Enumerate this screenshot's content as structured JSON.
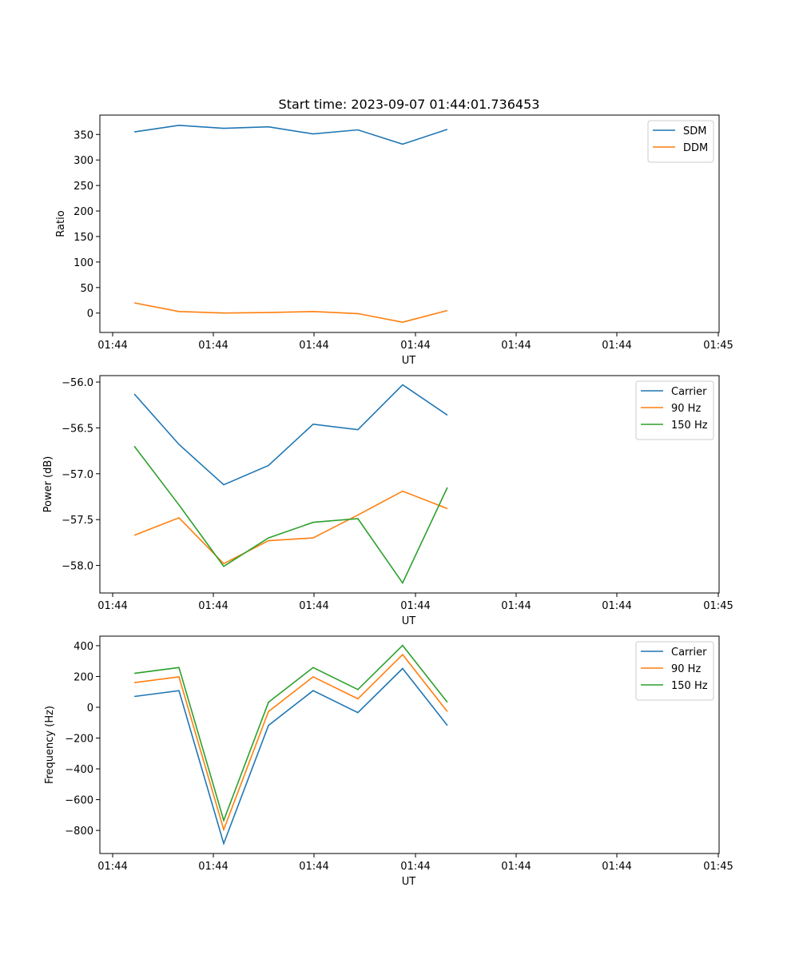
{
  "figure": {
    "title": "Start time: 2023-09-07 01:44:01.736453"
  },
  "chart_data": [
    {
      "type": "line",
      "xlabel": "UT",
      "ylabel": "Ratio",
      "x_tick_labels": [
        "01:44",
        "01:44",
        "01:44",
        "01:44",
        "01:44",
        "01:44",
        "01:45"
      ],
      "xlim": [
        0,
        9
      ],
      "x": [
        0.5,
        1.15,
        1.8,
        2.45,
        3.1,
        3.75,
        4.4,
        5.05
      ],
      "ylim": [
        -38,
        388
      ],
      "y_ticks": [
        0,
        50,
        100,
        150,
        200,
        250,
        300,
        350
      ],
      "legend_loc": "upper right",
      "series": [
        {
          "name": "SDM",
          "color": "#1f77b4",
          "values": [
            355,
            368,
            362,
            365,
            351,
            359,
            331,
            360
          ]
        },
        {
          "name": "DDM",
          "color": "#ff7f0e",
          "values": [
            20,
            3,
            0,
            1,
            3,
            -1,
            -18,
            5
          ]
        }
      ]
    },
    {
      "type": "line",
      "xlabel": "UT",
      "ylabel": "Power (dB)",
      "x_tick_labels": [
        "01:44",
        "01:44",
        "01:44",
        "01:44",
        "01:44",
        "01:44",
        "01:45"
      ],
      "xlim": [
        0,
        9
      ],
      "x": [
        0.5,
        1.15,
        1.8,
        2.45,
        3.1,
        3.75,
        4.4,
        5.05
      ],
      "ylim": [
        -58.3,
        -55.93
      ],
      "y_ticks": [
        -58.0,
        -57.5,
        -57.0,
        -56.5,
        -56.0
      ],
      "y_tick_labels": [
        "−58.0",
        "−57.5",
        "−57.0",
        "−56.5",
        "−56.0"
      ],
      "legend_loc": "upper right",
      "series": [
        {
          "name": "Carrier",
          "color": "#1f77b4",
          "values": [
            -56.13,
            -56.68,
            -57.12,
            -56.91,
            -56.46,
            -56.52,
            -56.03,
            -56.36
          ]
        },
        {
          "name": "90 Hz",
          "color": "#ff7f0e",
          "values": [
            -57.67,
            -57.48,
            -57.98,
            -57.73,
            -57.7,
            -57.45,
            -57.19,
            -57.38
          ]
        },
        {
          "name": "150 Hz",
          "color": "#2ca02c",
          "values": [
            -56.7,
            -57.34,
            -58.01,
            -57.7,
            -57.53,
            -57.49,
            -58.19,
            -57.15
          ]
        }
      ]
    },
    {
      "type": "line",
      "xlabel": "UT",
      "ylabel": "Frequency (Hz)",
      "x_tick_labels": [
        "01:44",
        "01:44",
        "01:44",
        "01:44",
        "01:44",
        "01:44",
        "01:45"
      ],
      "xlim": [
        0,
        9
      ],
      "x": [
        0.5,
        1.15,
        1.8,
        2.45,
        3.1,
        3.75,
        4.4,
        5.05
      ],
      "ylim": [
        -950,
        462
      ],
      "y_ticks": [
        -800,
        -600,
        -400,
        -200,
        0,
        200,
        400
      ],
      "y_tick_labels": [
        "−800",
        "−600",
        "−400",
        "−200",
        "0",
        "200",
        "400"
      ],
      "legend_loc": "upper right",
      "series": [
        {
          "name": "Carrier",
          "color": "#1f77b4",
          "values": [
            70,
            108,
            -885,
            -118,
            108,
            -35,
            252,
            -118
          ]
        },
        {
          "name": "90 Hz",
          "color": "#ff7f0e",
          "values": [
            160,
            198,
            -795,
            -28,
            198,
            55,
            342,
            -28
          ]
        },
        {
          "name": "150 Hz",
          "color": "#2ca02c",
          "values": [
            220,
            258,
            -735,
            32,
            258,
            115,
            402,
            32
          ]
        }
      ]
    }
  ]
}
